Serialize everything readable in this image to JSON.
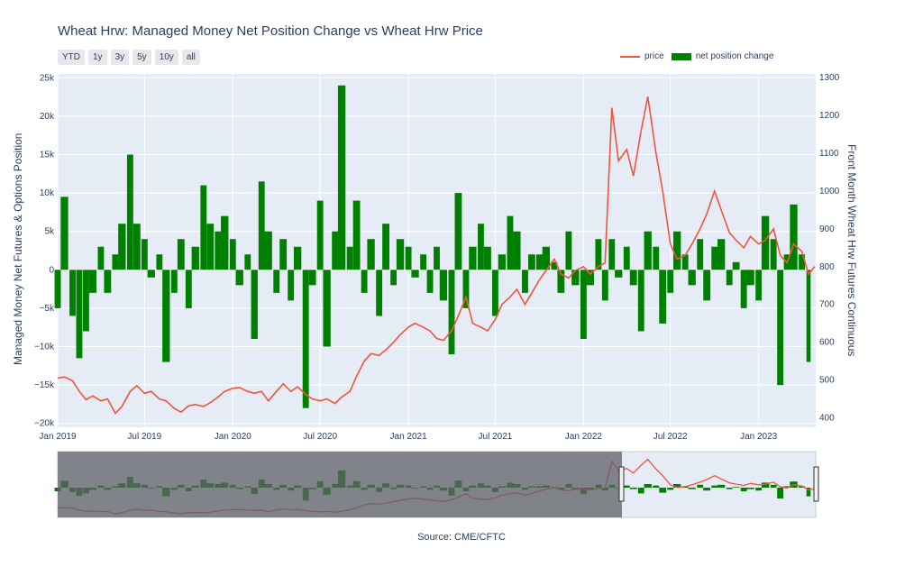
{
  "title": "Wheat Hrw: Managed Money Net Position Change vs Wheat Hrw Price",
  "range_buttons": [
    "YTD",
    "1y",
    "3y",
    "5y",
    "10y",
    "all"
  ],
  "legend": {
    "price": "price",
    "bars": "net position change"
  },
  "source": "Source: CME/CFTC",
  "colors": {
    "price": "#ef553b",
    "bars": "#008000",
    "plot_bg": "#e5ecf6",
    "selector_mask": "#5f6066"
  },
  "chart_data": {
    "type": "bar+line",
    "title": "Wheat Hrw: Managed Money Net Position Change vs Wheat Hrw Price",
    "xlabel": "",
    "x_ticks": [
      "Jan 2019",
      "Jul 2019",
      "Jan 2020",
      "Jul 2020",
      "Jan 2021",
      "Jul 2021",
      "Jan 2022",
      "Jul 2022",
      "Jan 2023"
    ],
    "y_left": {
      "label": "Managed Money Net Futures & Options Position",
      "ticks": [
        "25k",
        "20k",
        "15k",
        "10k",
        "5k",
        "0",
        "−5k",
        "−10k",
        "−15k",
        "−20k"
      ],
      "range": [
        -20500,
        25500
      ]
    },
    "y_right": {
      "label": "Front Month Wheat Hrw Futures Continuous",
      "ticks": [
        "1300",
        "1200",
        "1100",
        "1000",
        "900",
        "800",
        "700",
        "600",
        "500",
        "400"
      ],
      "range": [
        375,
        1310
      ]
    },
    "series": [
      {
        "name": "net position change",
        "axis": "left",
        "points": [
          [
            "2019-01-01",
            -5000
          ],
          [
            "2019-01-15",
            9500
          ],
          [
            "2019-02-01",
            -6000
          ],
          [
            "2019-02-15",
            -11500
          ],
          [
            "2019-03-01",
            -8000
          ],
          [
            "2019-03-15",
            -3000
          ],
          [
            "2019-04-01",
            3000
          ],
          [
            "2019-04-15",
            -3000
          ],
          [
            "2019-05-01",
            2000
          ],
          [
            "2019-05-15",
            6000
          ],
          [
            "2019-06-01",
            15000
          ],
          [
            "2019-06-15",
            6000
          ],
          [
            "2019-07-01",
            4000
          ],
          [
            "2019-07-15",
            -1000
          ],
          [
            "2019-08-01",
            2000
          ],
          [
            "2019-08-15",
            -12000
          ],
          [
            "2019-09-01",
            -3000
          ],
          [
            "2019-09-15",
            4000
          ],
          [
            "2019-10-01",
            -5000
          ],
          [
            "2019-10-15",
            3000
          ],
          [
            "2019-11-01",
            11000
          ],
          [
            "2019-11-15",
            6000
          ],
          [
            "2019-12-01",
            5000
          ],
          [
            "2019-12-15",
            7000
          ],
          [
            "2020-01-01",
            4000
          ],
          [
            "2020-01-15",
            -2000
          ],
          [
            "2020-02-01",
            2000
          ],
          [
            "2020-02-15",
            -9000
          ],
          [
            "2020-03-01",
            11500
          ],
          [
            "2020-03-15",
            5000
          ],
          [
            "2020-04-01",
            -3000
          ],
          [
            "2020-04-15",
            4000
          ],
          [
            "2020-05-01",
            -4000
          ],
          [
            "2020-05-15",
            3000
          ],
          [
            "2020-06-01",
            -18000
          ],
          [
            "2020-06-15",
            -2000
          ],
          [
            "2020-07-01",
            9000
          ],
          [
            "2020-07-15",
            -10000
          ],
          [
            "2020-08-01",
            5000
          ],
          [
            "2020-08-15",
            24000
          ],
          [
            "2020-09-01",
            3000
          ],
          [
            "2020-09-15",
            9000
          ],
          [
            "2020-10-01",
            -3000
          ],
          [
            "2020-10-15",
            4000
          ],
          [
            "2020-11-01",
            -6000
          ],
          [
            "2020-11-15",
            6000
          ],
          [
            "2020-12-01",
            -2000
          ],
          [
            "2020-12-15",
            4000
          ],
          [
            "2021-01-01",
            3000
          ],
          [
            "2021-01-15",
            -1000
          ],
          [
            "2021-02-01",
            2000
          ],
          [
            "2021-02-15",
            -3000
          ],
          [
            "2021-03-01",
            3000
          ],
          [
            "2021-03-15",
            -4000
          ],
          [
            "2021-04-01",
            -11000
          ],
          [
            "2021-04-15",
            10000
          ],
          [
            "2021-05-01",
            -5000
          ],
          [
            "2021-05-15",
            3000
          ],
          [
            "2021-06-01",
            6000
          ],
          [
            "2021-06-15",
            3000
          ],
          [
            "2021-07-01",
            -6000
          ],
          [
            "2021-07-15",
            2000
          ],
          [
            "2021-08-01",
            7000
          ],
          [
            "2021-08-15",
            5000
          ],
          [
            "2021-09-01",
            -3000
          ],
          [
            "2021-09-15",
            2000
          ],
          [
            "2021-10-01",
            2000
          ],
          [
            "2021-10-15",
            3000
          ],
          [
            "2021-11-01",
            1000
          ],
          [
            "2021-11-15",
            -3000
          ],
          [
            "2021-12-01",
            5000
          ],
          [
            "2021-12-15",
            -2000
          ],
          [
            "2022-01-01",
            -9000
          ],
          [
            "2022-01-15",
            -2000
          ],
          [
            "2022-02-01",
            4000
          ],
          [
            "2022-02-15",
            -4000
          ],
          [
            "2022-03-01",
            4000
          ],
          [
            "2022-03-15",
            -1000
          ],
          [
            "2022-04-01",
            3000
          ],
          [
            "2022-04-15",
            -2000
          ],
          [
            "2022-05-01",
            -8000
          ],
          [
            "2022-05-15",
            5000
          ],
          [
            "2022-06-01",
            3000
          ],
          [
            "2022-06-15",
            -7000
          ],
          [
            "2022-07-01",
            -3000
          ],
          [
            "2022-07-15",
            5000
          ],
          [
            "2022-08-01",
            2000
          ],
          [
            "2022-08-15",
            -2000
          ],
          [
            "2022-09-01",
            4000
          ],
          [
            "2022-09-15",
            -4000
          ],
          [
            "2022-10-01",
            3000
          ],
          [
            "2022-10-15",
            4000
          ],
          [
            "2022-11-01",
            -2000
          ],
          [
            "2022-11-15",
            1000
          ],
          [
            "2022-12-01",
            -5000
          ],
          [
            "2022-12-15",
            -2000
          ],
          [
            "2023-01-01",
            -4000
          ],
          [
            "2023-01-15",
            7000
          ],
          [
            "2023-02-01",
            4000
          ],
          [
            "2023-02-15",
            -15000
          ],
          [
            "2023-03-01",
            2000
          ],
          [
            "2023-03-15",
            8500
          ],
          [
            "2023-04-01",
            2000
          ],
          [
            "2023-04-15",
            -12000
          ]
        ]
      },
      {
        "name": "price",
        "axis": "right",
        "points": [
          [
            "2019-01-01",
            505
          ],
          [
            "2019-01-15",
            508
          ],
          [
            "2019-02-01",
            498
          ],
          [
            "2019-02-15",
            470
          ],
          [
            "2019-03-01",
            448
          ],
          [
            "2019-03-15",
            458
          ],
          [
            "2019-04-01",
            445
          ],
          [
            "2019-04-15",
            450
          ],
          [
            "2019-05-01",
            412
          ],
          [
            "2019-05-15",
            430
          ],
          [
            "2019-06-01",
            470
          ],
          [
            "2019-06-15",
            485
          ],
          [
            "2019-07-01",
            465
          ],
          [
            "2019-07-15",
            470
          ],
          [
            "2019-08-01",
            450
          ],
          [
            "2019-08-15",
            445
          ],
          [
            "2019-09-01",
            425
          ],
          [
            "2019-09-15",
            415
          ],
          [
            "2019-10-01",
            432
          ],
          [
            "2019-10-15",
            435
          ],
          [
            "2019-11-01",
            430
          ],
          [
            "2019-11-15",
            440
          ],
          [
            "2019-12-01",
            455
          ],
          [
            "2019-12-15",
            470
          ],
          [
            "2020-01-01",
            478
          ],
          [
            "2020-01-15",
            480
          ],
          [
            "2020-02-01",
            470
          ],
          [
            "2020-02-15",
            465
          ],
          [
            "2020-03-01",
            470
          ],
          [
            "2020-03-15",
            445
          ],
          [
            "2020-04-01",
            470
          ],
          [
            "2020-04-15",
            490
          ],
          [
            "2020-05-01",
            470
          ],
          [
            "2020-05-15",
            482
          ],
          [
            "2020-06-01",
            462
          ],
          [
            "2020-06-15",
            450
          ],
          [
            "2020-07-01",
            445
          ],
          [
            "2020-07-15",
            450
          ],
          [
            "2020-08-01",
            438
          ],
          [
            "2020-08-15",
            455
          ],
          [
            "2020-09-01",
            470
          ],
          [
            "2020-09-15",
            510
          ],
          [
            "2020-10-01",
            550
          ],
          [
            "2020-10-15",
            570
          ],
          [
            "2020-11-01",
            565
          ],
          [
            "2020-11-15",
            580
          ],
          [
            "2020-12-01",
            600
          ],
          [
            "2020-12-15",
            620
          ],
          [
            "2021-01-01",
            640
          ],
          [
            "2021-01-15",
            650
          ],
          [
            "2021-02-01",
            640
          ],
          [
            "2021-02-15",
            630
          ],
          [
            "2021-03-01",
            610
          ],
          [
            "2021-03-15",
            605
          ],
          [
            "2021-04-01",
            630
          ],
          [
            "2021-04-15",
            670
          ],
          [
            "2021-05-01",
            720
          ],
          [
            "2021-05-15",
            650
          ],
          [
            "2021-06-01",
            640
          ],
          [
            "2021-06-15",
            630
          ],
          [
            "2021-07-01",
            660
          ],
          [
            "2021-07-15",
            700
          ],
          [
            "2021-08-01",
            720
          ],
          [
            "2021-08-15",
            740
          ],
          [
            "2021-09-01",
            700
          ],
          [
            "2021-09-15",
            730
          ],
          [
            "2021-10-01",
            765
          ],
          [
            "2021-10-15",
            790
          ],
          [
            "2021-11-01",
            820
          ],
          [
            "2021-11-15",
            780
          ],
          [
            "2021-12-01",
            770
          ],
          [
            "2021-12-15",
            790
          ],
          [
            "2022-01-01",
            800
          ],
          [
            "2022-01-15",
            780
          ],
          [
            "2022-02-01",
            800
          ],
          [
            "2022-02-15",
            810
          ],
          [
            "2022-03-01",
            1220
          ],
          [
            "2022-03-15",
            1080
          ],
          [
            "2022-04-01",
            1110
          ],
          [
            "2022-04-15",
            1040
          ],
          [
            "2022-05-01",
            1160
          ],
          [
            "2022-05-15",
            1250
          ],
          [
            "2022-06-01",
            1100
          ],
          [
            "2022-06-15",
            1000
          ],
          [
            "2022-07-01",
            860
          ],
          [
            "2022-07-15",
            820
          ],
          [
            "2022-08-01",
            830
          ],
          [
            "2022-08-15",
            860
          ],
          [
            "2022-09-01",
            900
          ],
          [
            "2022-09-15",
            940
          ],
          [
            "2022-10-01",
            1000
          ],
          [
            "2022-10-15",
            950
          ],
          [
            "2022-11-01",
            890
          ],
          [
            "2022-11-15",
            870
          ],
          [
            "2022-12-01",
            850
          ],
          [
            "2022-12-15",
            880
          ],
          [
            "2023-01-01",
            860
          ],
          [
            "2023-01-15",
            870
          ],
          [
            "2023-02-01",
            900
          ],
          [
            "2023-02-15",
            830
          ],
          [
            "2023-03-01",
            810
          ],
          [
            "2023-03-15",
            860
          ],
          [
            "2023-04-01",
            840
          ],
          [
            "2023-04-15",
            780
          ],
          [
            "2023-04-28",
            800
          ]
        ]
      }
    ],
    "grid": true,
    "legend_position": "top-right",
    "range_slider": true
  }
}
